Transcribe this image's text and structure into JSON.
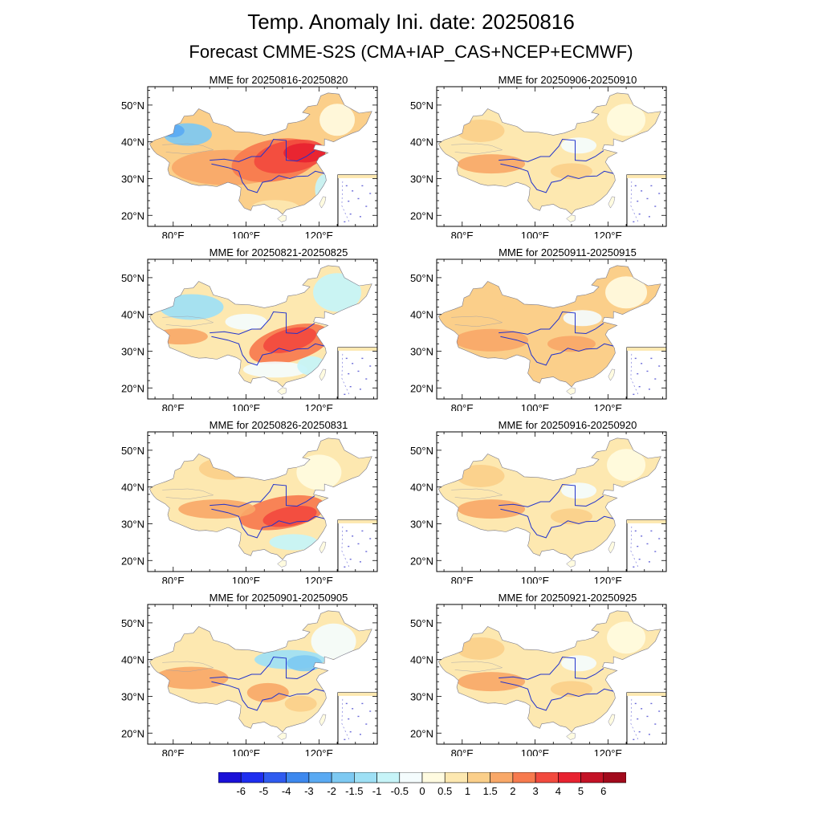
{
  "title": "Temp. Anomaly Ini. date: 20250816",
  "subtitle": "Forecast CMME-S2S (CMA+IAP_CAS+NCEP+ECMWF)",
  "map": {
    "lon_ticks": [
      "80°E",
      "100°E",
      "120°E"
    ],
    "lat_ticks": [
      "50°N",
      "40°N",
      "30°N",
      "20°N"
    ],
    "lon_range": [
      73,
      136
    ],
    "lat_range": [
      17,
      55
    ]
  },
  "panels": [
    {
      "id": "p1",
      "label": "MME for 20250816-20250820",
      "pattern": "strong-warm-center-cool-west"
    },
    {
      "id": "p2",
      "label": "MME for 20250821-20250825",
      "pattern": "warm-center-cool-northeast"
    },
    {
      "id": "p3",
      "label": "MME for 20250826-20250831",
      "pattern": "warm-center"
    },
    {
      "id": "p4",
      "label": "MME for 20250901-20250905",
      "pattern": "cool-north-warm-west"
    },
    {
      "id": "p5",
      "label": "MME for 20250906-20250910",
      "pattern": "mild-warm"
    },
    {
      "id": "p6",
      "label": "MME for 20250911-20250915",
      "pattern": "mild-warm-tibet"
    },
    {
      "id": "p7",
      "label": "MME for 20250916-20250920",
      "pattern": "mild-warm"
    },
    {
      "id": "p8",
      "label": "MME for 20250921-20250925",
      "pattern": "mild-warm"
    }
  ],
  "colorbar": {
    "labels": [
      "-6",
      "-5",
      "-4",
      "-3",
      "-2",
      "-1.5",
      "-1",
      "-0.5",
      "0",
      "0.5",
      "1",
      "1.5",
      "2",
      "3",
      "4",
      "5",
      "6"
    ],
    "colors": [
      "#1a10d8",
      "#1e2ef0",
      "#2f5bf0",
      "#3d88ee",
      "#5aaaf3",
      "#7dc9f2",
      "#9ee0f5",
      "#c6f4f8",
      "#f4fcfd",
      "#fffbe0",
      "#fde8b0",
      "#fbcf8a",
      "#f9a868",
      "#f77a4e",
      "#f24a3e",
      "#e82230",
      "#c41226",
      "#a20a1c"
    ]
  }
}
